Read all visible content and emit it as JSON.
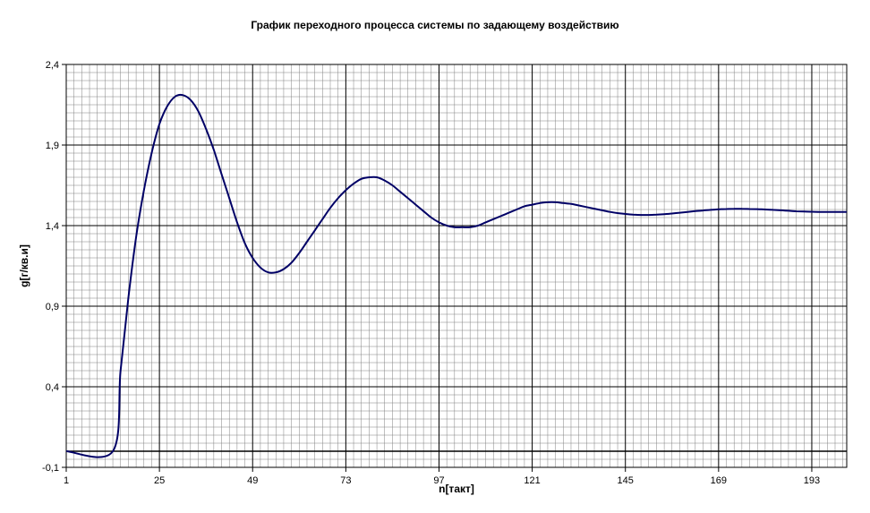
{
  "chart_data": {
    "type": "line",
    "title": "График переходного процесса системы по задающему воздействию",
    "xlabel": "n[такт]",
    "ylabel": "g[г/кв.и]",
    "xlim": [
      1,
      202
    ],
    "ylim": [
      -0.1,
      2.4
    ],
    "x_ticks": [
      "1",
      "25",
      "49",
      "73",
      "97",
      "121",
      "145",
      "169",
      "193"
    ],
    "y_ticks": [
      "-0,1",
      "0,4",
      "0,9",
      "1,4",
      "1,9",
      "2,4"
    ],
    "grid": "major-and-minor",
    "legend": "none",
    "colors": {
      "series": "#000066",
      "grid_major": "#000000",
      "grid_minor": "#808080"
    },
    "series": [
      {
        "x": [
          1,
          13,
          15,
          17,
          19,
          21,
          23,
          25,
          27,
          29,
          31,
          33,
          35,
          37,
          39,
          41,
          43,
          45,
          47,
          49,
          51,
          53,
          55,
          57,
          59,
          61,
          63,
          65,
          67,
          69,
          71,
          73,
          75,
          77,
          79,
          81,
          83,
          85,
          87,
          89,
          91,
          93,
          95,
          97,
          99,
          101,
          103,
          105,
          107,
          109,
          111,
          113,
          115,
          117,
          119,
          121,
          123,
          125,
          127,
          129,
          131,
          133,
          135,
          137,
          139,
          141,
          143,
          145,
          147,
          149,
          151,
          153,
          155,
          157,
          159,
          161,
          163,
          165,
          167,
          169,
          171,
          173,
          175,
          177,
          179,
          181,
          183,
          185,
          187,
          189,
          191,
          193,
          195,
          197,
          199,
          202
        ],
        "y": [
          0,
          0,
          0.5,
          0.95,
          1.33,
          1.62,
          1.85,
          2.03,
          2.14,
          2.2,
          2.21,
          2.18,
          2.11,
          2.0,
          1.87,
          1.72,
          1.57,
          1.42,
          1.29,
          1.2,
          1.14,
          1.11,
          1.11,
          1.13,
          1.17,
          1.23,
          1.3,
          1.37,
          1.44,
          1.51,
          1.57,
          1.62,
          1.66,
          1.69,
          1.7,
          1.7,
          1.68,
          1.65,
          1.61,
          1.57,
          1.53,
          1.49,
          1.45,
          1.42,
          1.4,
          1.39,
          1.39,
          1.39,
          1.4,
          1.42,
          1.44,
          1.46,
          1.48,
          1.5,
          1.52,
          1.53,
          1.54,
          1.545,
          1.545,
          1.54,
          1.535,
          1.525,
          1.515,
          1.505,
          1.495,
          1.485,
          1.478,
          1.472,
          1.468,
          1.466,
          1.466,
          1.468,
          1.471,
          1.475,
          1.48,
          1.485,
          1.49,
          1.494,
          1.498,
          1.501,
          1.503,
          1.504,
          1.504,
          1.503,
          1.502,
          1.5,
          1.498,
          1.495,
          1.492,
          1.489,
          1.487,
          1.486,
          1.485,
          1.485,
          1.485,
          1.485
        ]
      }
    ]
  }
}
